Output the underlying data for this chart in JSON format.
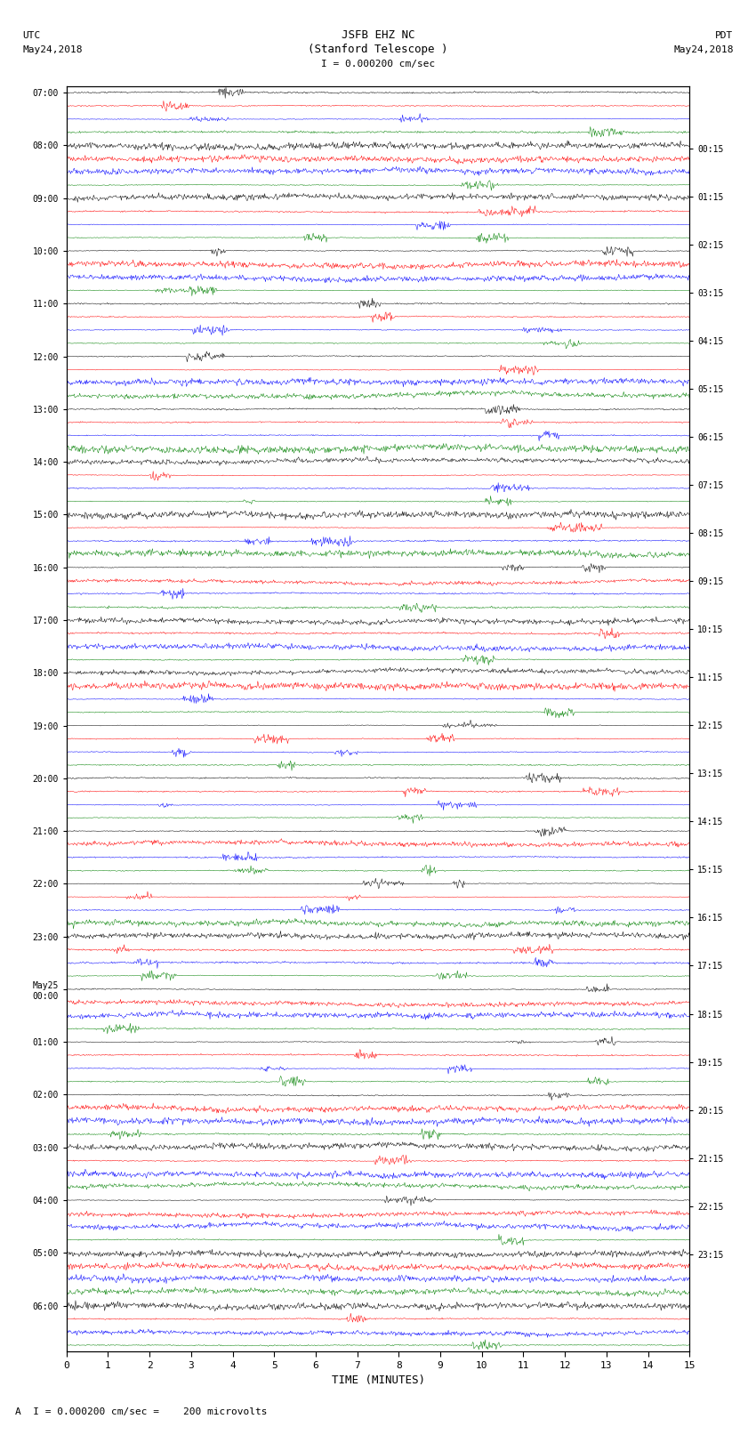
{
  "title_line1": "JSFB EHZ NC",
  "title_line2": "(Stanford Telescope )",
  "scale_label": "I = 0.000200 cm/sec",
  "footer_label": "A  I = 0.000200 cm/sec =    200 microvolts",
  "utc_top": "UTC",
  "utc_date": "May24,2018",
  "pdt_top": "PDT",
  "pdt_date": "May24,2018",
  "xlabel": "TIME (MINUTES)",
  "left_times": [
    "07:00",
    "08:00",
    "09:00",
    "10:00",
    "11:00",
    "12:00",
    "13:00",
    "14:00",
    "15:00",
    "16:00",
    "17:00",
    "18:00",
    "19:00",
    "20:00",
    "21:00",
    "22:00",
    "23:00",
    "May25\n00:00",
    "01:00",
    "02:00",
    "03:00",
    "04:00",
    "05:00",
    "06:00"
  ],
  "right_times": [
    "00:15",
    "01:15",
    "02:15",
    "03:15",
    "04:15",
    "05:15",
    "06:15",
    "07:15",
    "08:15",
    "09:15",
    "10:15",
    "11:15",
    "12:15",
    "13:15",
    "14:15",
    "15:15",
    "16:15",
    "17:15",
    "18:15",
    "19:15",
    "20:15",
    "21:15",
    "22:15",
    "23:15"
  ],
  "colors": [
    "black",
    "red",
    "blue",
    "green"
  ],
  "n_rows": 96,
  "n_points": 900,
  "xlim": [
    0,
    15
  ],
  "xticks": [
    0,
    1,
    2,
    3,
    4,
    5,
    6,
    7,
    8,
    9,
    10,
    11,
    12,
    13,
    14,
    15
  ],
  "bg_color": "white",
  "seed": 42
}
